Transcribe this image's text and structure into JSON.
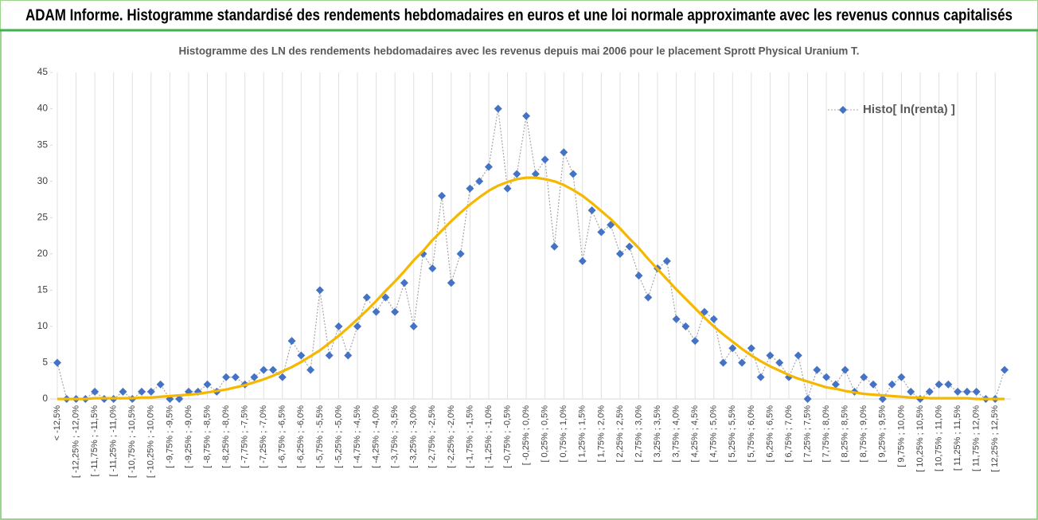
{
  "chart_data": {
    "type": "line",
    "title": "ADAM Informe. Histogramme standardisé des rendements hebdomadaires en euros et une loi normale approximante avec les revenus connus capitalisés",
    "subtitle": "Histogramme des LN des rendements hebdomadaires avec les revenus depuis mai 2006 pour le placement Sprott Physical Uranium T.",
    "categories": [
      "< -12,5%",
      null,
      "[ -12,25% ; -12,0%",
      null,
      "[ -11,75% ; -11,5%",
      null,
      "[ -11,25% ; -11,0%",
      null,
      "[ -10,75% ; -10,5%",
      null,
      "[ -10,25% ; -10,0%",
      null,
      "[ -9,75% ; -9,5%",
      null,
      "[ -9,25% ; -9,0%",
      null,
      "[ -8,75% ; -8,5%",
      null,
      "[ -8,25% ; -8,0%",
      null,
      "[ -7,75% ; -7,5%",
      null,
      "[ -7,25% ; -7,0%",
      null,
      "[ -6,75% ; -6,5%",
      null,
      "[ -6,25% ; -6,0%",
      null,
      "[ -5,75% ; -5,5%",
      null,
      "[ -5,25% ; -5,0%",
      null,
      "[ -4,75% ; -4,5%",
      null,
      "[ -4,25% ; -4,0%",
      null,
      "[ -3,75% ; -3,5%",
      null,
      "[ -3,25% ; -3,0%",
      null,
      "[ -2,75% ; -2,5%",
      null,
      "[ -2,25% ; -2,0%",
      null,
      "[ -1,75% ; -1,5%",
      null,
      "[ -1,25% ; -1,0%",
      null,
      "[ -0,75% ; -0,5%",
      null,
      "[ -0,25% ; 0,0%",
      null,
      "[ 0,25% ; 0,5%",
      null,
      "[ 0,75% ; 1,0%",
      null,
      "[ 1,25% ; 1,5%",
      null,
      "[ 1,75% ; 2,0%",
      null,
      "[ 2,25% ; 2,5%",
      null,
      "[ 2,75% ; 3,0%",
      null,
      "[ 3,25% ; 3,5%",
      null,
      "[ 3,75% ; 4,0%",
      null,
      "[ 4,25% ; 4,5%",
      null,
      "[ 4,75% ; 5,0%",
      null,
      "[ 5,25% ; 5,5%",
      null,
      "[ 5,75% ; 6,0%",
      null,
      "[ 6,25% ; 6,5%",
      null,
      "[ 6,75% ; 7,0%",
      null,
      "[ 7,25% ; 7,5%",
      null,
      "[ 7,75% ; 8,0%",
      null,
      "[ 8,25% ; 8,5%",
      null,
      "[ 8,75% ; 9,0%",
      null,
      "[ 9,25% ; 9,5%",
      null,
      "[ 9,75% ; 10,0%",
      null,
      "[ 10,25% ; 10,5%",
      null,
      "[ 10,75% ; 11,0%",
      null,
      "[ 11,25% ; 11,5%",
      null,
      "[ 11,75% ; 12,0%",
      null,
      "[ 12,25% ; 12,5%",
      null
    ],
    "series": [
      {
        "name": "Histo[ ln(renta) ]",
        "color": "#4472c4",
        "values": [
          5,
          0,
          0,
          0,
          1,
          0,
          0,
          1,
          0,
          1,
          1,
          2,
          0,
          0,
          1,
          1,
          2,
          1,
          3,
          3,
          2,
          3,
          4,
          4,
          3,
          8,
          6,
          4,
          15,
          6,
          10,
          6,
          10,
          14,
          12,
          14,
          12,
          16,
          10,
          20,
          18,
          28,
          16,
          20,
          29,
          30,
          32,
          40,
          29,
          31,
          39,
          31,
          33,
          21,
          34,
          31,
          19,
          26,
          23,
          24,
          20,
          21,
          17,
          14,
          18,
          19,
          11,
          10,
          8,
          12,
          11,
          5,
          7,
          5,
          7,
          3,
          6,
          5,
          3,
          6,
          0,
          4,
          3,
          2,
          4,
          1,
          3,
          2,
          0,
          2,
          3,
          1,
          0,
          1,
          2,
          2,
          1,
          1,
          1,
          0,
          0,
          4
        ]
      },
      {
        "color": "#f5b800",
        "values": [
          0,
          0,
          0,
          0,
          0.1,
          0.1,
          0.1,
          0.1,
          0.1,
          0.2,
          0.2,
          0.3,
          0.4,
          0.5,
          0.6,
          0.7,
          0.9,
          1.1,
          1.3,
          1.6,
          1.9,
          2.3,
          2.7,
          3.2,
          3.8,
          4.4,
          5.1,
          5.9,
          6.7,
          7.7,
          8.7,
          9.8,
          11.0,
          12.2,
          13.5,
          14.9,
          16.2,
          17.6,
          19.1,
          20.4,
          21.9,
          23.2,
          24.5,
          25.7,
          26.8,
          27.8,
          28.7,
          29.4,
          29.9,
          30.3,
          30.5,
          30.5,
          30.3,
          30.0,
          29.5,
          28.8,
          28.0,
          27.0,
          25.9,
          24.8,
          23.5,
          22.1,
          20.8,
          19.3,
          17.9,
          16.5,
          15.1,
          13.8,
          12.5,
          11.2,
          10.0,
          8.9,
          7.9,
          6.9,
          6.0,
          5.2,
          4.5,
          3.9,
          3.3,
          2.8,
          2.4,
          2.0,
          1.6,
          1.4,
          1.1,
          0.9,
          0.7,
          0.6,
          0.5,
          0.4,
          0.3,
          0.2,
          0.2,
          0.1,
          0.1,
          0.1,
          0.1,
          0.1,
          0,
          0,
          0,
          0
        ]
      }
    ],
    "ylim": [
      0,
      45
    ],
    "yticks": [
      0,
      5,
      10,
      15,
      20,
      25,
      30,
      35,
      40,
      45
    ],
    "legend": "upper right",
    "grid": "x"
  }
}
